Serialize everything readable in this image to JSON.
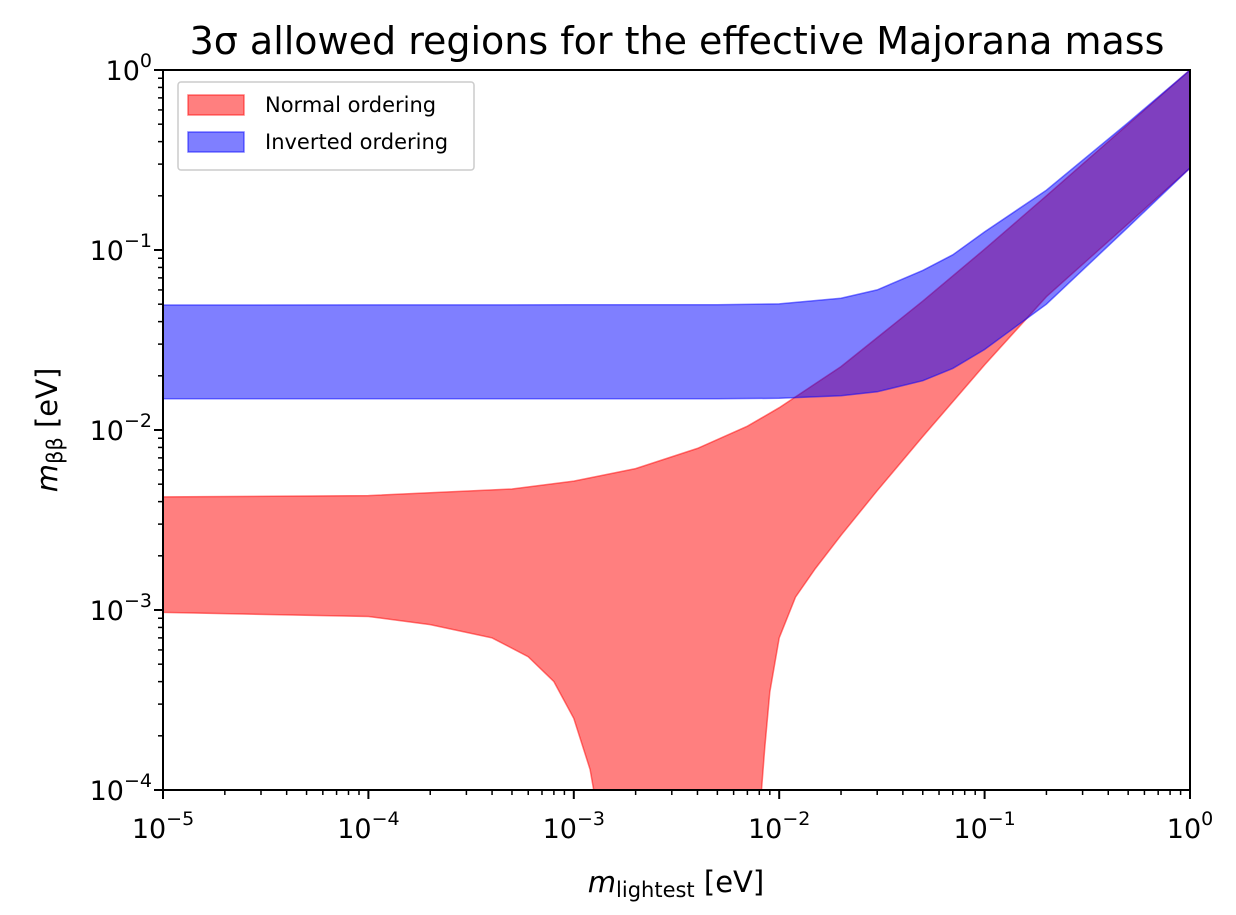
{
  "chart_data": {
    "type": "area",
    "title": "3σ allowed regions for the effective Majorana mass",
    "xlabel": {
      "base": "m",
      "subscript": "lightest",
      "unit": " [eV]"
    },
    "ylabel": {
      "base": "m",
      "subscript": "ββ",
      "unit": " [eV]"
    },
    "xscale": "log",
    "yscale": "log",
    "xlim": [
      1e-05,
      1
    ],
    "ylim": [
      0.0001,
      1
    ],
    "x_ticks": [
      {
        "base": "10",
        "exp": "−5"
      },
      {
        "base": "10",
        "exp": "−4"
      },
      {
        "base": "10",
        "exp": "−3"
      },
      {
        "base": "10",
        "exp": "−2"
      },
      {
        "base": "10",
        "exp": "−1"
      },
      {
        "base": "10",
        "exp": "0"
      }
    ],
    "y_ticks": [
      {
        "base": "10",
        "exp": "−4"
      },
      {
        "base": "10",
        "exp": "−3"
      },
      {
        "base": "10",
        "exp": "−2"
      },
      {
        "base": "10",
        "exp": "−1"
      },
      {
        "base": "10",
        "exp": "0"
      }
    ],
    "legend_position": "top-left",
    "series": [
      {
        "name": "Normal ordering",
        "color": "#ff0000",
        "upper": [
          [
            1e-05,
            0.00425
          ],
          [
            0.0001,
            0.00432
          ],
          [
            0.0005,
            0.0047
          ],
          [
            0.001,
            0.0052
          ],
          [
            0.002,
            0.0061
          ],
          [
            0.004,
            0.0079
          ],
          [
            0.007,
            0.0105
          ],
          [
            0.01,
            0.0133
          ],
          [
            0.02,
            0.0225
          ],
          [
            0.05,
            0.052
          ],
          [
            0.1,
            0.101
          ],
          [
            0.2,
            0.2
          ],
          [
            0.5,
            0.5
          ],
          [
            1.0,
            1.0
          ]
        ],
        "lower": [
          [
            1e-05,
            0.00097
          ],
          [
            0.0001,
            0.00092
          ],
          [
            0.0002,
            0.00083
          ],
          [
            0.0004,
            0.0007
          ],
          [
            0.0006,
            0.00055
          ],
          [
            0.0008,
            0.0004
          ],
          [
            0.001,
            0.00025
          ],
          [
            0.0012,
            0.00013
          ],
          [
            0.00125,
            0.0001
          ],
          [
            0.0082,
            0.0001
          ],
          [
            0.0085,
            0.00017
          ],
          [
            0.009,
            0.00035
          ],
          [
            0.01,
            0.0007
          ],
          [
            0.012,
            0.00118
          ],
          [
            0.015,
            0.0017
          ],
          [
            0.02,
            0.0026
          ],
          [
            0.03,
            0.0046
          ],
          [
            0.05,
            0.0092
          ],
          [
            0.1,
            0.023
          ],
          [
            0.2,
            0.055
          ],
          [
            0.5,
            0.14
          ],
          [
            1.0,
            0.285
          ]
        ]
      },
      {
        "name": "Inverted ordering",
        "color": "#0000ff",
        "upper": [
          [
            1e-05,
            0.0495
          ],
          [
            0.001,
            0.0496
          ],
          [
            0.005,
            0.0497
          ],
          [
            0.01,
            0.0502
          ],
          [
            0.02,
            0.054
          ],
          [
            0.03,
            0.06
          ],
          [
            0.05,
            0.077
          ],
          [
            0.07,
            0.094
          ],
          [
            0.1,
            0.126
          ],
          [
            0.2,
            0.215
          ],
          [
            0.5,
            0.51
          ],
          [
            1.0,
            1.0
          ]
        ],
        "lower": [
          [
            1e-05,
            0.0149
          ],
          [
            0.001,
            0.0149
          ],
          [
            0.005,
            0.0149
          ],
          [
            0.01,
            0.015
          ],
          [
            0.02,
            0.0155
          ],
          [
            0.03,
            0.0163
          ],
          [
            0.05,
            0.0188
          ],
          [
            0.07,
            0.022
          ],
          [
            0.1,
            0.028
          ],
          [
            0.2,
            0.05
          ],
          [
            0.5,
            0.134
          ],
          [
            1.0,
            0.285
          ]
        ]
      }
    ]
  }
}
